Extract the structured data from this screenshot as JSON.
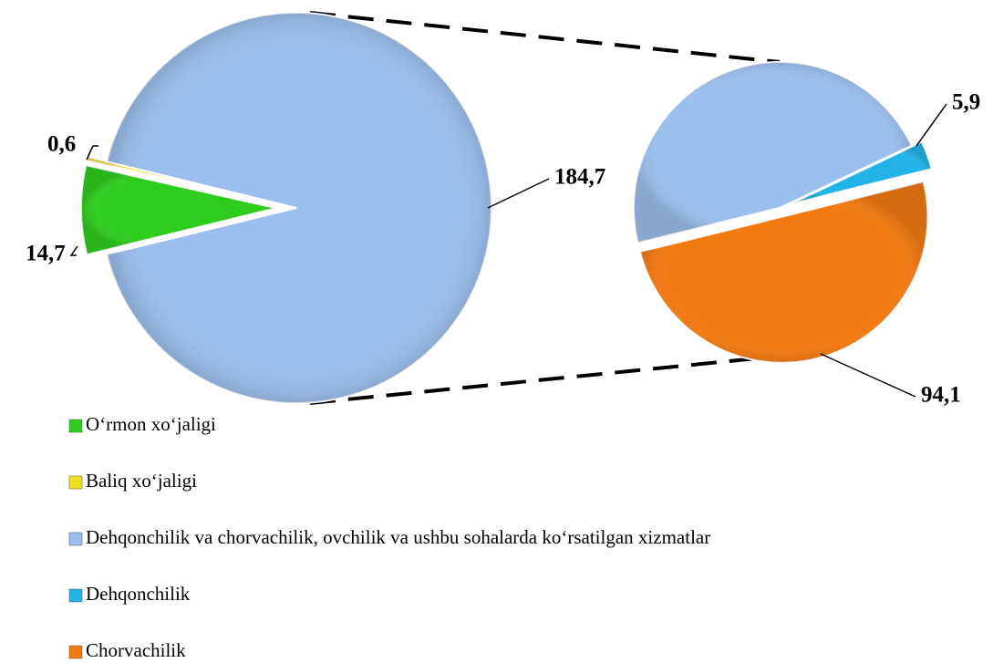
{
  "chart_data": {
    "type": "pie-of-pie",
    "categories": [
      "O‘rmon xo‘jaligi",
      "Baliq xo‘jaligi",
      "Dehqonchilik va chorvachilik, ovchilik va ushbu sohalarda ko‘rsatilgan xizmatlar",
      "Dehqonchilik",
      "Chorvachilik"
    ],
    "colors": [
      "#2ecc1e",
      "#f0e020",
      "#9bbfec",
      "#22b4e6",
      "#f27a12"
    ],
    "pies": [
      {
        "values": [
          14.7,
          0.6,
          184.7,
          null,
          null
        ],
        "value_labels": [
          "14,7",
          "0,6",
          "184,7",
          null,
          null
        ]
      },
      {
        "values": [
          null,
          null,
          88,
          5.9,
          94.1
        ],
        "value_labels": [
          null,
          null,
          null,
          "5,9",
          "94,1"
        ]
      }
    ]
  }
}
